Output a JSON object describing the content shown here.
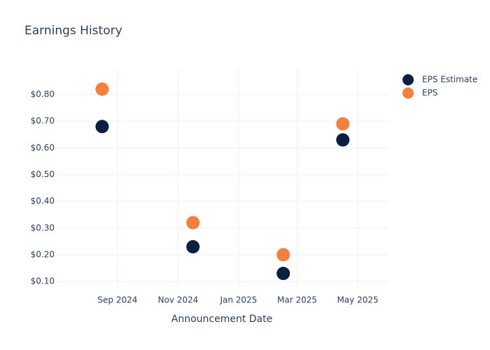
{
  "chart_data": {
    "type": "scatter",
    "title": "Earnings History",
    "x_label": "Announcement Date",
    "x": [
      "2024-08",
      "2024-11",
      "2025-02",
      "2025-04"
    ],
    "series": [
      {
        "name": "EPS Estimate",
        "color": "#0b1f41",
        "values": [
          0.68,
          0.23,
          0.13,
          0.63
        ]
      },
      {
        "name": "EPS",
        "color": "#f5803e",
        "values": [
          0.82,
          0.32,
          0.2,
          0.69
        ]
      }
    ],
    "xlim": [
      "2024-07",
      "2025-06"
    ],
    "xticks": [
      {
        "value": "2024-09",
        "label": "Sep 2024"
      },
      {
        "value": "2024-11",
        "label": "Nov 2024"
      },
      {
        "value": "2025-01",
        "label": "Jan 2025"
      },
      {
        "value": "2025-03",
        "label": "Mar 2025"
      },
      {
        "value": "2025-05",
        "label": "May 2025"
      }
    ],
    "ylim": [
      0.074,
      0.897
    ],
    "yticks": [
      {
        "value": 0.1,
        "label": "$0.10"
      },
      {
        "value": 0.2,
        "label": "$0.20"
      },
      {
        "value": 0.3,
        "label": "$0.30"
      },
      {
        "value": 0.4,
        "label": "$0.40"
      },
      {
        "value": 0.5,
        "label": "$0.50"
      },
      {
        "value": 0.6,
        "label": "$0.60"
      },
      {
        "value": 0.7,
        "label": "$0.70"
      },
      {
        "value": 0.8,
        "label": "$0.80"
      }
    ],
    "grid": true,
    "legend": "right"
  }
}
